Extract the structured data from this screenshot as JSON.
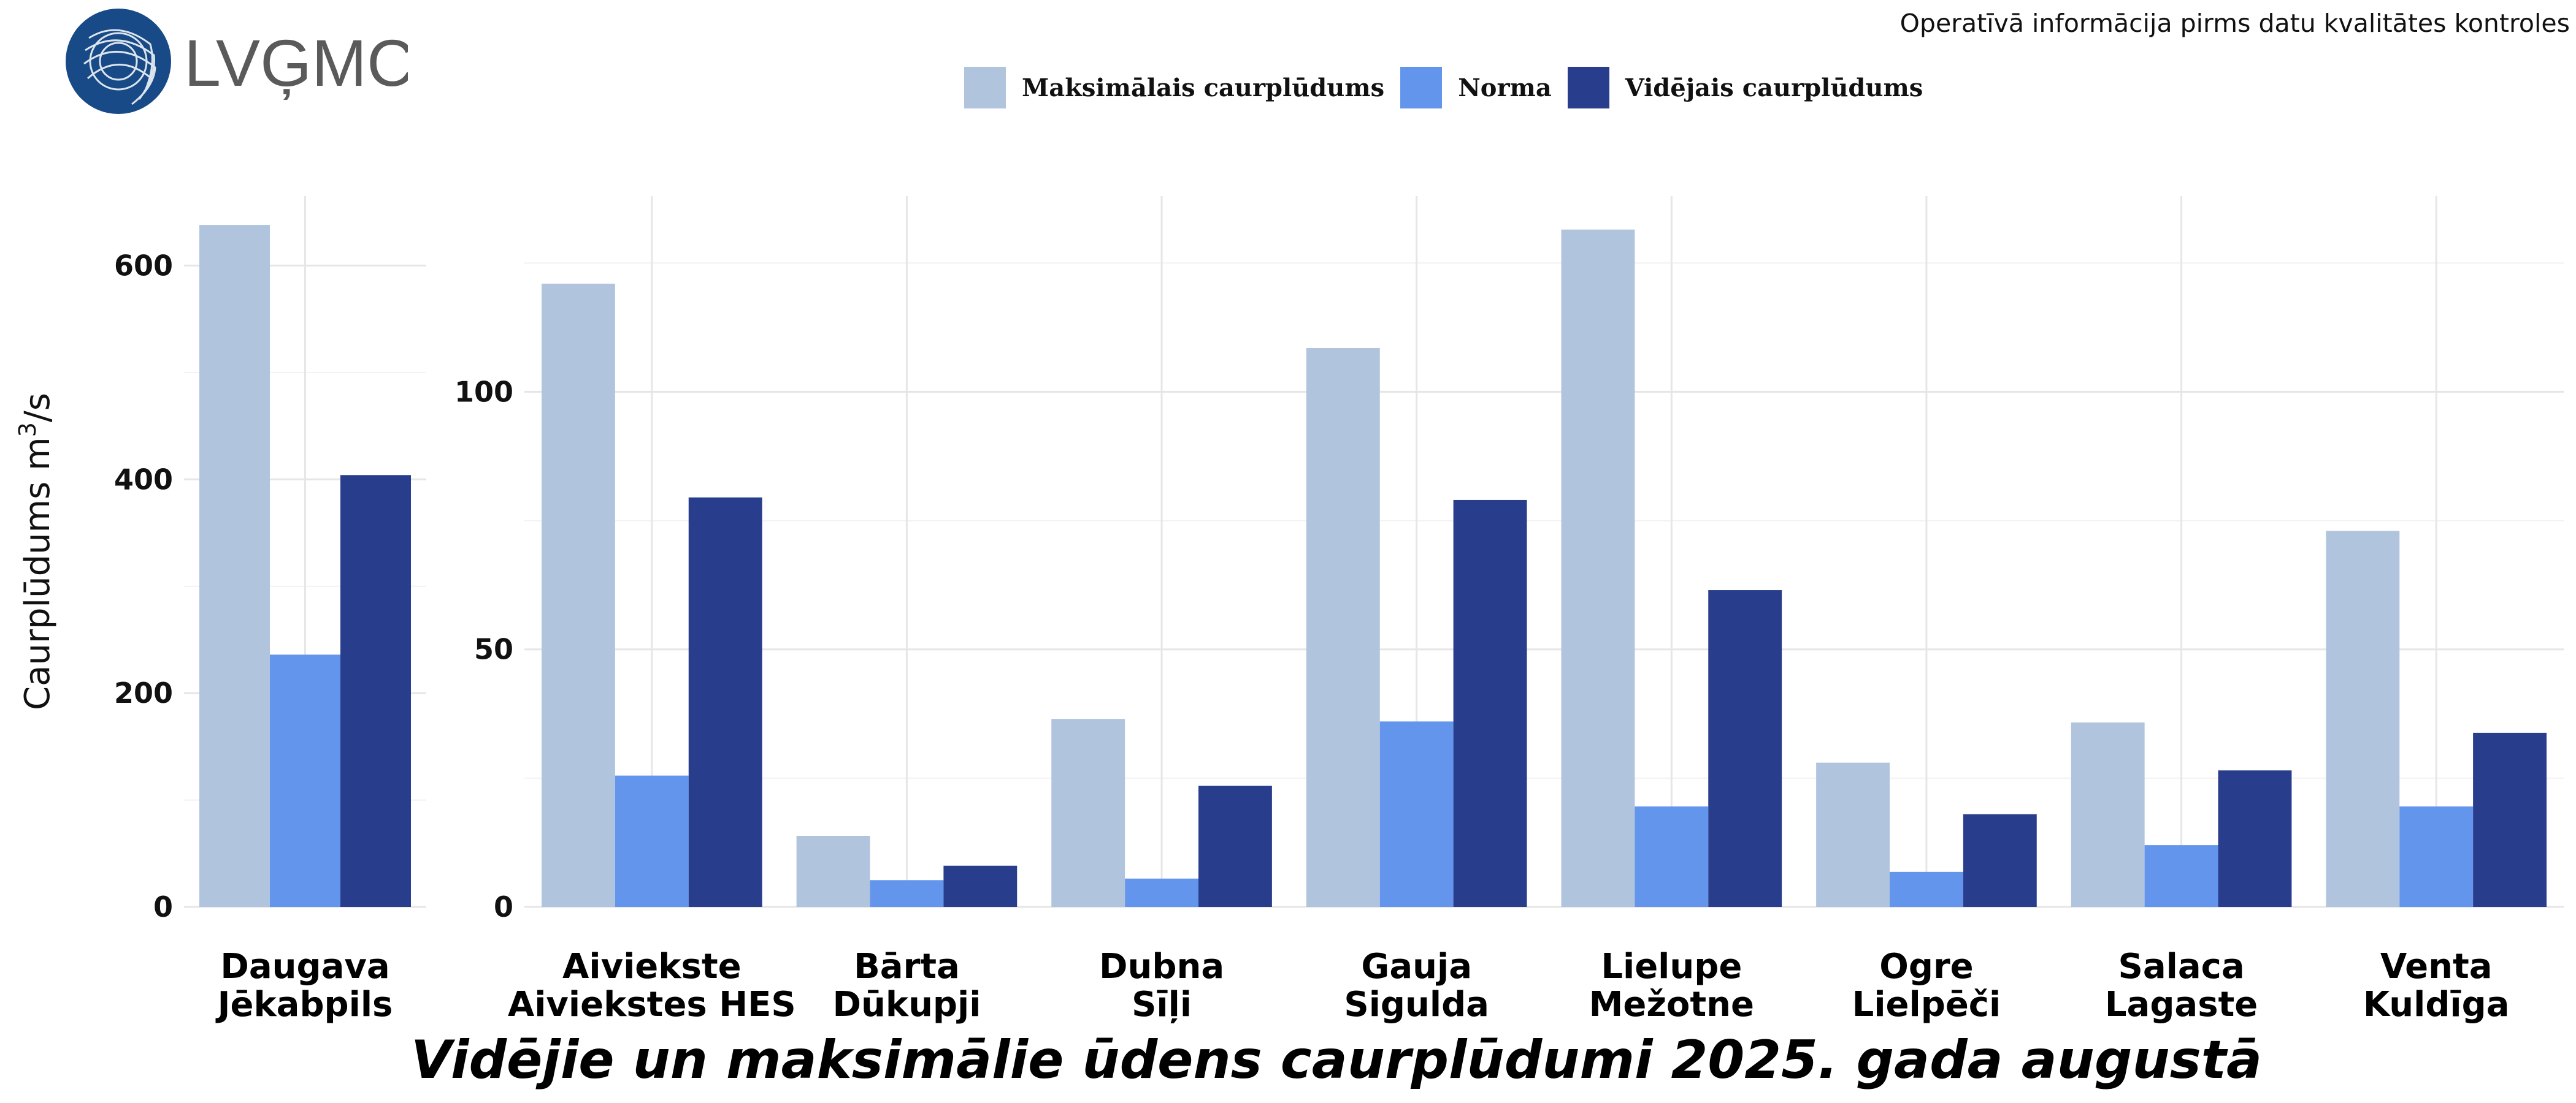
{
  "header": {
    "brand": "LVĢMC",
    "note": "Operatīvā informācija pirms datu kvalitātes kontroles"
  },
  "legend": [
    {
      "label": "Maksimālais caurplūdums",
      "color": "#b0c4de"
    },
    {
      "label": "Norma",
      "color": "#6495ed"
    },
    {
      "label": "Vidējais caurplūdums",
      "color": "#283e8c"
    }
  ],
  "chart_data": {
    "type": "bar",
    "title": "Vidējie un maksimālie ūdens caurplūdumi 2025. gada augustā",
    "ylabel": "Caurplūdums",
    "yunit_base": "m",
    "yunit_sup": "3",
    "yunit_tail": "/s",
    "series_names": [
      "Maksimālais caurplūdums",
      "Norma",
      "Vidējais caurplūdums"
    ],
    "panels": [
      {
        "ylim": [
          0,
          665
        ],
        "yticks": [
          0,
          200,
          400,
          600
        ],
        "categories": [
          {
            "river": "Daugava",
            "station": "Jēkabpils",
            "values": [
              638,
              236,
              404
            ]
          }
        ]
      },
      {
        "ylim": [
          0,
          138
        ],
        "yticks": [
          0,
          50,
          100
        ],
        "categories": [
          {
            "river": "Aiviekste",
            "station": "Aiviekstes HES",
            "values": [
              121,
              25.5,
              79.5
            ]
          },
          {
            "river": "Bārta",
            "station": "Dūkupji",
            "values": [
              13.8,
              5.2,
              8
            ]
          },
          {
            "river": "Dubna",
            "station": "Sīļi",
            "values": [
              36.5,
              5.5,
              23.5
            ]
          },
          {
            "river": "Gauja",
            "station": "Sigulda",
            "values": [
              108.5,
              36,
              79
            ]
          },
          {
            "river": "Lielupe",
            "station": "Mežotne",
            "values": [
              131.5,
              19.5,
              61.5
            ]
          },
          {
            "river": "Ogre",
            "station": "Lielpēči",
            "values": [
              28,
              6.8,
              18
            ]
          },
          {
            "river": "Salaca",
            "station": "Lagaste",
            "values": [
              35.8,
              12,
              26.5
            ]
          },
          {
            "river": "Venta",
            "station": "Kuldīga",
            "values": [
              73,
              19.5,
              33.8
            ]
          }
        ]
      }
    ]
  }
}
